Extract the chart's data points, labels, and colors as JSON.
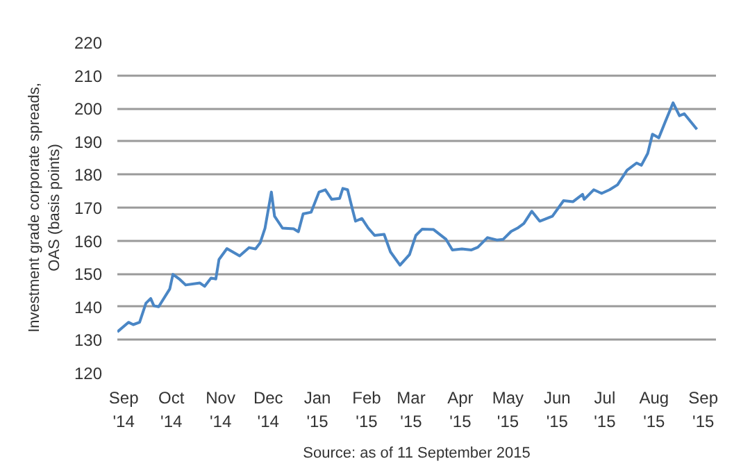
{
  "chart_data": {
    "type": "line",
    "ylabel": "Investment grade corporate spreads,\nOAS (basis points)",
    "annotations": [
      "Source: as of 11 September 2015"
    ],
    "x": [
      "2014-08-28",
      "2014-09-04",
      "2014-09-07",
      "2014-09-11",
      "2014-09-15",
      "2014-09-18",
      "2014-09-20",
      "2014-09-23",
      "2014-09-30",
      "2014-10-02",
      "2014-10-06",
      "2014-10-10",
      "2014-10-19",
      "2014-10-22",
      "2014-10-26",
      "2014-10-29",
      "2014-10-31",
      "2014-11-05",
      "2014-11-13",
      "2014-11-19",
      "2014-11-23",
      "2014-11-26",
      "2014-11-29",
      "2014-12-03",
      "2014-12-05",
      "2014-12-10",
      "2014-12-17",
      "2014-12-20",
      "2014-12-23",
      "2014-12-28",
      "2015-01-02",
      "2015-01-06",
      "2015-01-10",
      "2015-01-15",
      "2015-01-17",
      "2015-01-20",
      "2015-01-23",
      "2015-01-25",
      "2015-01-29",
      "2015-02-02",
      "2015-02-06",
      "2015-02-12",
      "2015-02-16",
      "2015-02-22",
      "2015-02-28",
      "2015-03-04",
      "2015-03-08",
      "2015-03-15",
      "2015-03-23",
      "2015-03-27",
      "2015-04-02",
      "2015-04-08",
      "2015-04-12",
      "2015-04-18",
      "2015-04-24",
      "2015-04-28",
      "2015-05-03",
      "2015-05-07",
      "2015-05-11",
      "2015-05-16",
      "2015-05-21",
      "2015-05-29",
      "2015-06-05",
      "2015-06-11",
      "2015-06-17",
      "2015-06-18",
      "2015-06-24",
      "2015-06-29",
      "2015-07-04",
      "2015-07-09",
      "2015-07-15",
      "2015-07-21",
      "2015-07-24",
      "2015-07-28",
      "2015-07-31",
      "2015-08-04",
      "2015-08-08",
      "2015-08-13",
      "2015-08-17",
      "2015-08-20",
      "2015-08-28"
    ],
    "series": [
      {
        "color": "#4a86c5",
        "values": [
          132.4,
          135.3,
          134.6,
          135.3,
          141.1,
          142.5,
          140.3,
          140,
          145.4,
          149.8,
          148.4,
          146.6,
          147.2,
          146.2,
          148.7,
          148.4,
          154.3,
          157.6,
          155.4,
          157.9,
          157.5,
          159.4,
          163.8,
          174.7,
          167.4,
          163.8,
          163.6,
          162.7,
          168.1,
          168.6,
          174.7,
          175.4,
          172.5,
          172.8,
          175.8,
          175.4,
          169.6,
          165.9,
          166.7,
          163.8,
          161.6,
          161.9,
          156.6,
          152.6,
          155.8,
          161.6,
          163.5,
          163.4,
          160.4,
          157.2,
          157.5,
          157.2,
          158,
          160.9,
          160.2,
          160.4,
          162.8,
          163.8,
          165.2,
          168.9,
          165.9,
          167.4,
          172.1,
          171.8,
          174,
          172.5,
          175.4,
          174.3,
          175.4,
          176.9,
          181.3,
          183.5,
          182.8,
          186.4,
          192.2,
          191.1,
          195.9,
          201.7,
          197.8,
          198.4,
          193.7
        ]
      }
    ],
    "xlim": [
      "2014-08-28",
      "2015-09-09"
    ],
    "xticks": [
      {
        "value": "2014-09-01",
        "label": "Sep\n'14"
      },
      {
        "value": "2014-10-01",
        "label": "Oct\n'14"
      },
      {
        "value": "2014-11-01",
        "label": "Nov\n'14"
      },
      {
        "value": "2014-12-01",
        "label": "Dec\n'14"
      },
      {
        "value": "2015-01-01",
        "label": "Jan\n'15"
      },
      {
        "value": "2015-02-01",
        "label": "Feb\n'15"
      },
      {
        "value": "2015-03-01",
        "label": "Mar\n'15"
      },
      {
        "value": "2015-04-01",
        "label": "Apr\n'15"
      },
      {
        "value": "2015-05-01",
        "label": "May\n'15"
      },
      {
        "value": "2015-06-01",
        "label": "Jun\n'15"
      },
      {
        "value": "2015-07-01",
        "label": "Jul\n'15"
      },
      {
        "value": "2015-08-01",
        "label": "Aug\n'15"
      },
      {
        "value": "2015-09-01",
        "label": "Sep\n'15"
      }
    ],
    "ylim": [
      120,
      220
    ],
    "yticks": [
      120,
      130,
      140,
      150,
      160,
      170,
      180,
      190,
      200,
      210,
      220
    ],
    "grid": "y",
    "marker": "none",
    "line_style": "solid"
  }
}
